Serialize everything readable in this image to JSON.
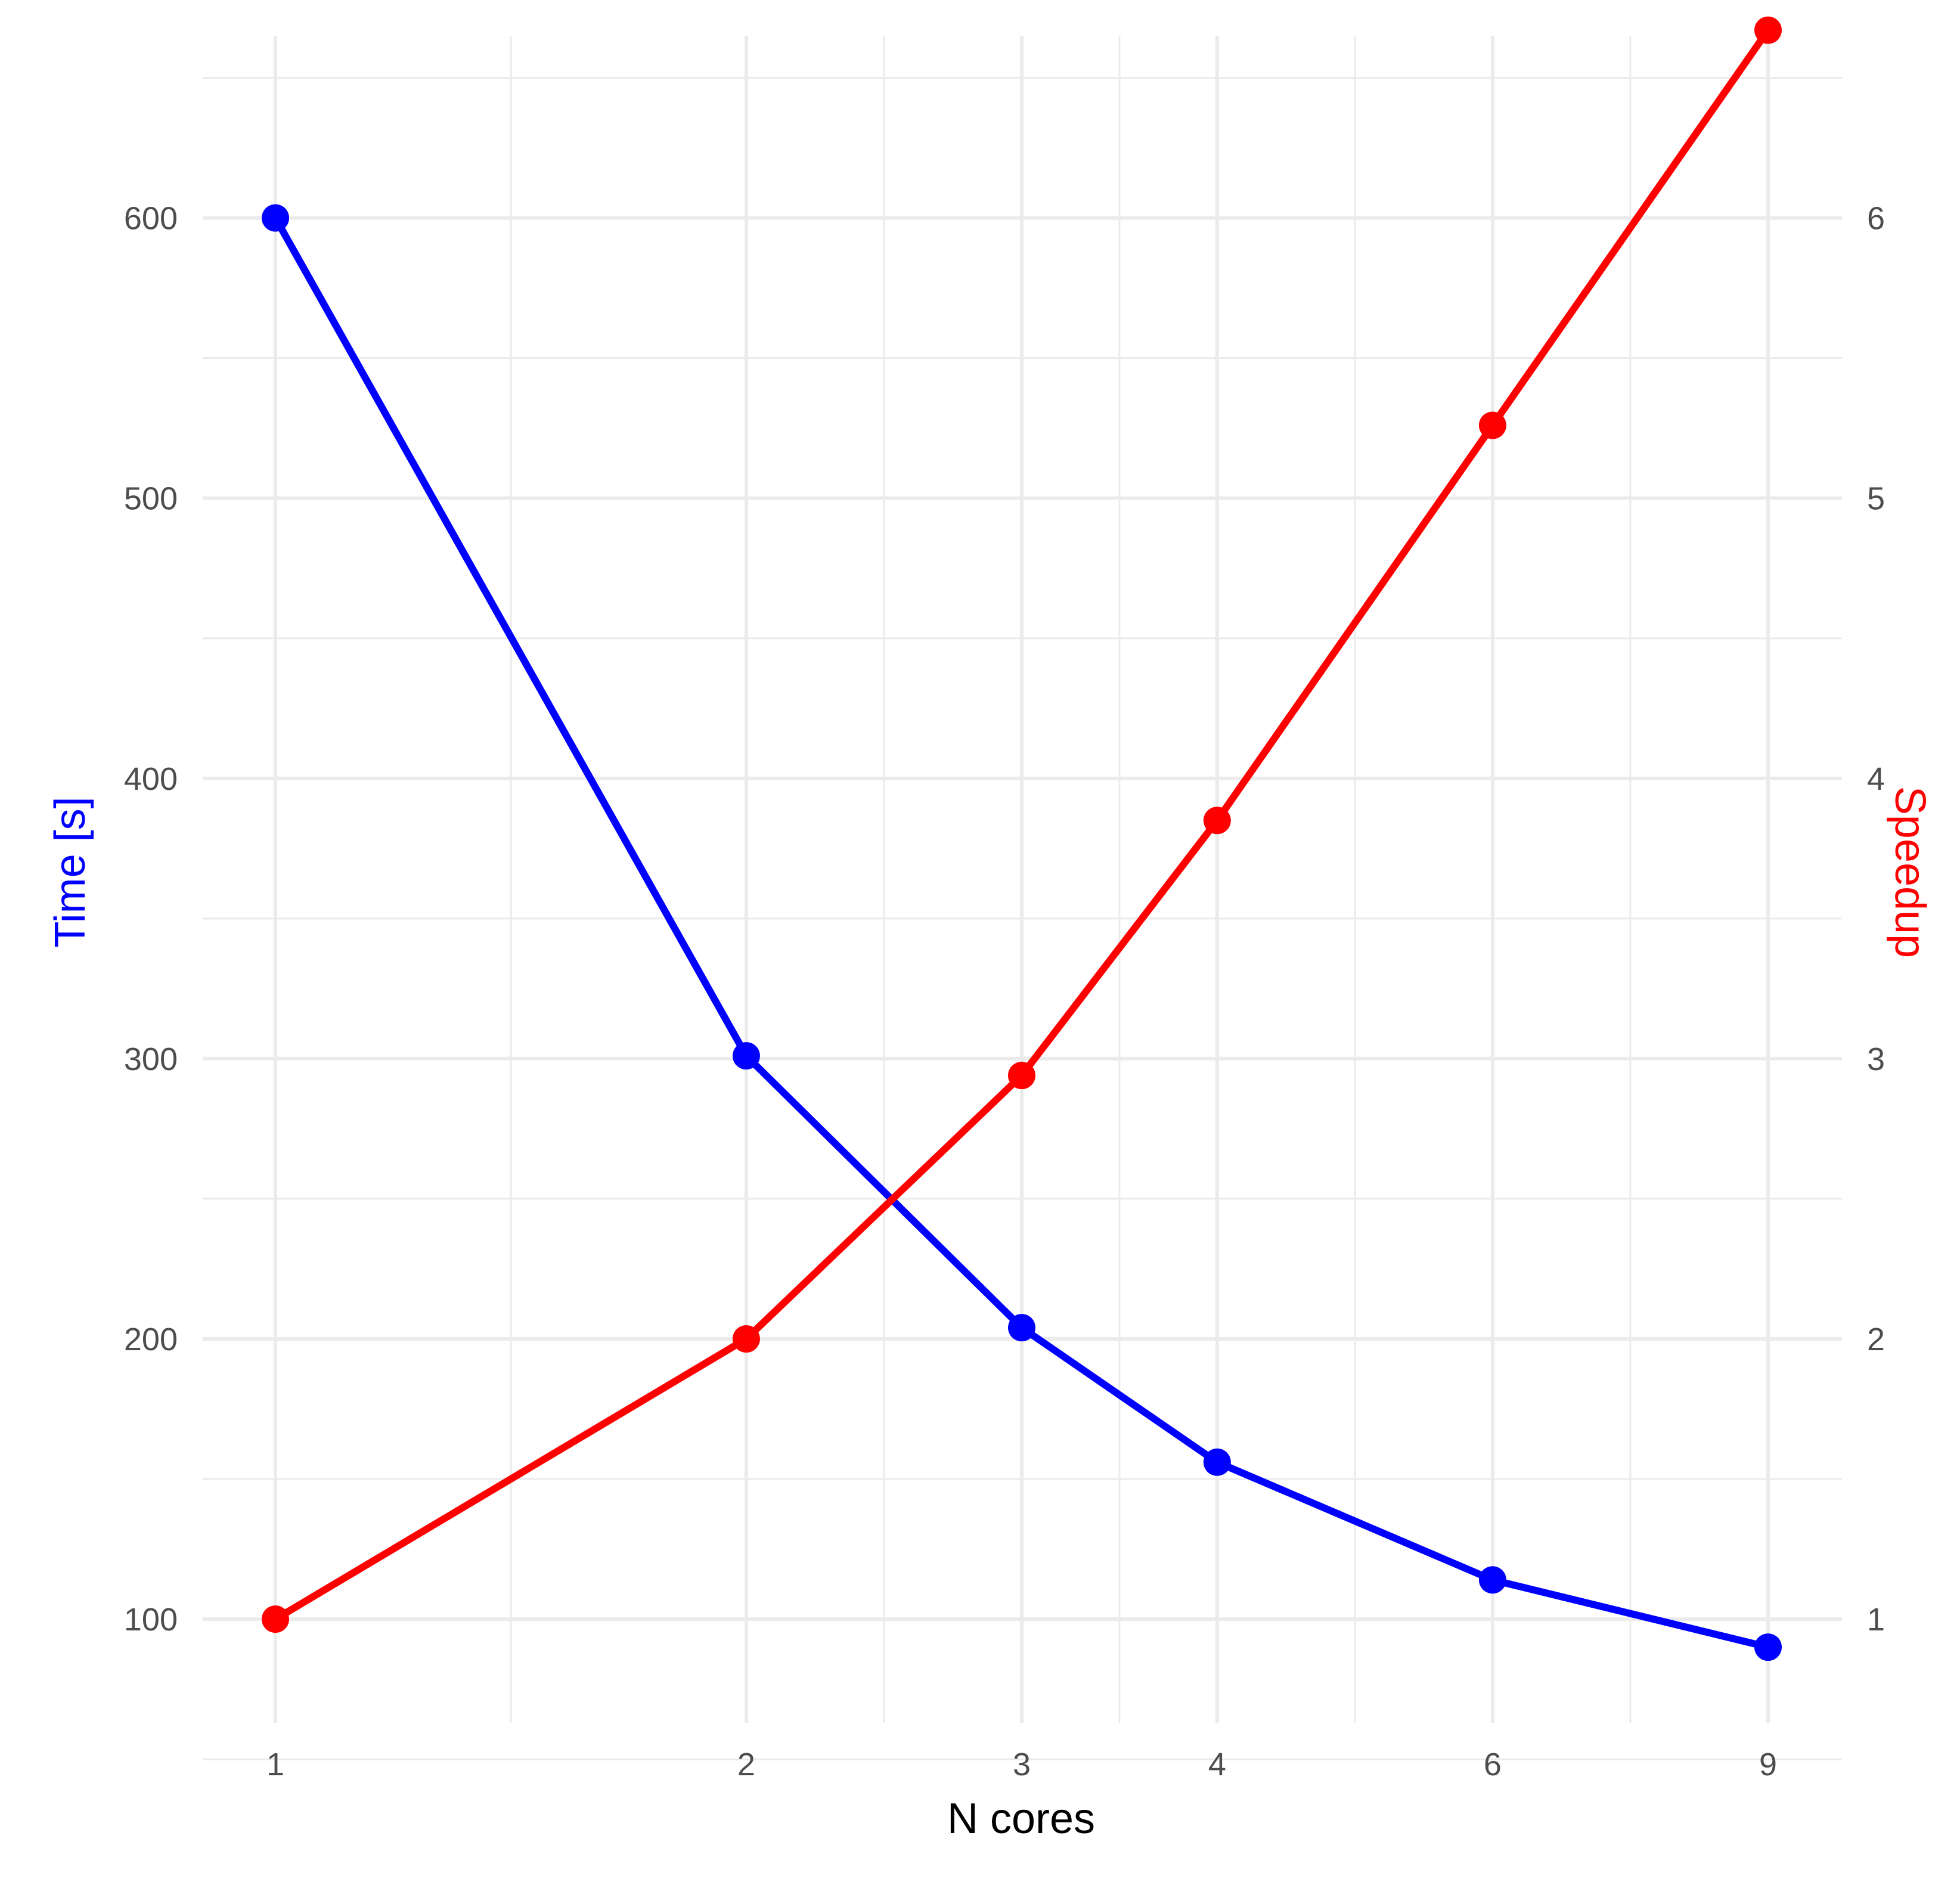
{
  "chart_data": {
    "type": "line",
    "title": "",
    "xlabel": "N cores",
    "ylabel": "Time [s]",
    "y2label": "Speedup",
    "x": [
      1,
      2,
      3,
      4,
      6,
      9
    ],
    "x_tick_labels": [
      "1",
      "2",
      "3",
      "4",
      "6",
      "9"
    ],
    "y_ticks": [
      "100",
      "200",
      "300",
      "400",
      "500",
      "600"
    ],
    "y2_ticks": [
      "1",
      "2",
      "3",
      "4",
      "5",
      "6"
    ],
    "ylim": [
      63,
      665
    ],
    "y2lim": [
      0.63,
      6.65
    ],
    "x_scale": "log",
    "grid": true,
    "series": [
      {
        "axis": "left",
        "color": "#0000ff",
        "values": [
          600,
          301,
          204,
          156,
          114,
          90
        ]
      },
      {
        "axis": "right",
        "color": "#ff0000",
        "values": [
          1.0,
          2.0,
          2.94,
          3.85,
          5.26,
          6.67
        ]
      }
    ]
  },
  "colors": {
    "time": "#0000ff",
    "speedup": "#ff0000",
    "grid": "#ebebeb",
    "tick_text": "#4d4d4d",
    "title_text": "#000000"
  }
}
